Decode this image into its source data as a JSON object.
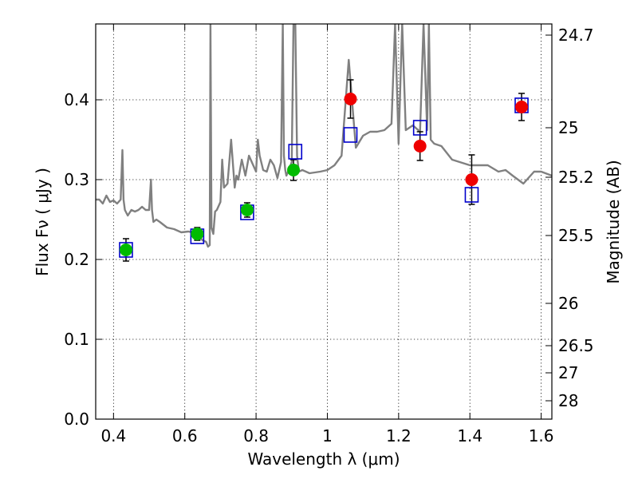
{
  "chart_data": {
    "type": "scatter",
    "xlabel": "Wavelength  λ (μm)",
    "ylabel": "Flux  Fν  ( μJy )",
    "y2label": "Magnitude (AB)",
    "xlim": [
      0.35,
      1.63
    ],
    "ylim": [
      0.0,
      0.495
    ],
    "x_ticks": [
      0.4,
      0.6,
      0.8,
      1.0,
      1.2,
      1.4,
      1.6
    ],
    "x_tick_labels": [
      "0.4",
      "0.6",
      "0.8",
      "1",
      "1.2",
      "1.4",
      "1.6"
    ],
    "y_ticks": [
      0.0,
      0.1,
      0.2,
      0.3,
      0.4
    ],
    "y_tick_labels": [
      "0.0",
      "0.1",
      "0.2",
      "0.3",
      "0.4"
    ],
    "y2_ticks": [
      {
        "label": "24.7",
        "flux": 0.481
      },
      {
        "label": "25",
        "flux": 0.365
      },
      {
        "label": "25.2",
        "flux": 0.303
      },
      {
        "label": "25.5",
        "flux": 0.23
      },
      {
        "label": "26",
        "flux": 0.145
      },
      {
        "label": "26.5",
        "flux": 0.092
      },
      {
        "label": "27",
        "flux": 0.058
      },
      {
        "label": "28",
        "flux": 0.023
      }
    ],
    "grid": true,
    "colors": {
      "observed_green": "#00bb00",
      "observed_red": "#ee0000",
      "model_box": "#0000cc",
      "spectrum": "#808080",
      "errorbar": "#000000"
    },
    "series": [
      {
        "marker": "circle",
        "color": "#00bb00",
        "x": [
          0.435,
          0.635,
          0.775,
          0.905
        ],
        "y": [
          0.212,
          0.232,
          0.262,
          0.312
        ],
        "yerr": [
          0.014,
          0.008,
          0.009,
          0.013
        ]
      },
      {
        "marker": "circle",
        "color": "#ee0000",
        "x": [
          1.065,
          1.26,
          1.405,
          1.545
        ],
        "y": [
          0.401,
          0.342,
          0.3,
          0.391
        ],
        "yerr": [
          0.024,
          0.018,
          0.031,
          0.017
        ]
      },
      {
        "marker": "open-square",
        "color": "#0000cc",
        "x": [
          0.435,
          0.635,
          0.775,
          0.91,
          1.065,
          1.26,
          1.405,
          1.545
        ],
        "y": [
          0.212,
          0.229,
          0.259,
          0.335,
          0.356,
          0.365,
          0.281,
          0.393
        ]
      },
      {
        "marker": "line",
        "color": "#808080",
        "x": [
          0.35,
          0.36,
          0.37,
          0.38,
          0.39,
          0.4,
          0.41,
          0.42,
          0.425,
          0.428,
          0.432,
          0.44,
          0.45,
          0.46,
          0.47,
          0.48,
          0.49,
          0.5,
          0.505,
          0.508,
          0.512,
          0.52,
          0.53,
          0.55,
          0.57,
          0.59,
          0.61,
          0.63,
          0.65,
          0.66,
          0.665,
          0.67,
          0.672,
          0.675,
          0.68,
          0.685,
          0.69,
          0.7,
          0.705,
          0.71,
          0.72,
          0.73,
          0.74,
          0.745,
          0.75,
          0.76,
          0.77,
          0.78,
          0.79,
          0.8,
          0.805,
          0.81,
          0.82,
          0.83,
          0.84,
          0.85,
          0.86,
          0.87,
          0.875,
          0.878,
          0.882,
          0.885,
          0.89,
          0.9,
          0.905,
          0.91,
          0.915,
          0.92,
          0.93,
          0.95,
          0.98,
          1.0,
          1.02,
          1.04,
          1.06,
          1.08,
          1.1,
          1.12,
          1.14,
          1.16,
          1.18,
          1.19,
          1.2,
          1.21,
          1.22,
          1.24,
          1.26,
          1.27,
          1.28,
          1.285,
          1.29,
          1.3,
          1.32,
          1.35,
          1.4,
          1.45,
          1.48,
          1.5,
          1.52,
          1.55,
          1.58,
          1.6,
          1.63
        ],
        "y": [
          0.275,
          0.275,
          0.27,
          0.28,
          0.272,
          0.274,
          0.27,
          0.275,
          0.337,
          0.275,
          0.262,
          0.255,
          0.262,
          0.26,
          0.262,
          0.266,
          0.262,
          0.262,
          0.3,
          0.262,
          0.247,
          0.25,
          0.247,
          0.24,
          0.238,
          0.234,
          0.235,
          0.233,
          0.224,
          0.222,
          0.216,
          0.218,
          0.495,
          0.24,
          0.232,
          0.26,
          0.262,
          0.272,
          0.325,
          0.29,
          0.295,
          0.35,
          0.29,
          0.305,
          0.3,
          0.325,
          0.305,
          0.33,
          0.32,
          0.31,
          0.35,
          0.33,
          0.312,
          0.31,
          0.325,
          0.318,
          0.302,
          0.322,
          0.495,
          0.33,
          0.312,
          0.305,
          0.31,
          0.322,
          0.495,
          0.495,
          0.33,
          0.31,
          0.312,
          0.308,
          0.31,
          0.312,
          0.318,
          0.33,
          0.45,
          0.34,
          0.355,
          0.36,
          0.36,
          0.362,
          0.37,
          0.495,
          0.345,
          0.495,
          0.362,
          0.368,
          0.36,
          0.495,
          0.362,
          0.495,
          0.35,
          0.345,
          0.342,
          0.325,
          0.318,
          0.318,
          0.31,
          0.312,
          0.305,
          0.295,
          0.31,
          0.31,
          0.305
        ]
      }
    ]
  }
}
